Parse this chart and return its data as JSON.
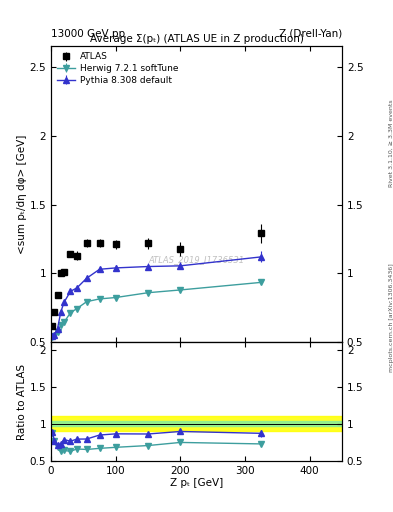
{
  "title_top_left": "13000 GeV pp",
  "title_top_right": "Z (Drell-Yan)",
  "title_main": "Average Σ(pₜ) (ATLAS UE in Z production)",
  "ylabel_main": "<sum pₜ/dη dφ> [GeV]",
  "ylabel_ratio": "Ratio to ATLAS",
  "xlabel": "Z pₜ [GeV]",
  "watermark": "ATLAS_2019_I1736531",
  "right_label": "mcplots.cern.ch [arXiv:1306.3436]",
  "right_label2": "Rivet 3.1.10, ≥ 3.3M events",
  "atlas_x": [
    2,
    5,
    10,
    15,
    20,
    30,
    40,
    55,
    75,
    100,
    150,
    200,
    325
  ],
  "atlas_y": [
    0.62,
    0.72,
    0.84,
    1.0,
    1.01,
    1.14,
    1.13,
    1.22,
    1.22,
    1.21,
    1.22,
    1.18,
    1.29
  ],
  "atlas_yerr": [
    0.02,
    0.02,
    0.02,
    0.02,
    0.02,
    0.02,
    0.03,
    0.03,
    0.03,
    0.03,
    0.04,
    0.05,
    0.07
  ],
  "herwig_x": [
    2,
    5,
    10,
    15,
    20,
    30,
    40,
    55,
    75,
    100,
    150,
    200,
    325
  ],
  "herwig_y": [
    0.54,
    0.545,
    0.575,
    0.625,
    0.645,
    0.715,
    0.745,
    0.795,
    0.815,
    0.825,
    0.86,
    0.88,
    0.935
  ],
  "herwig_yerr": [
    0.005,
    0.005,
    0.005,
    0.005,
    0.005,
    0.007,
    0.007,
    0.007,
    0.007,
    0.008,
    0.01,
    0.012,
    0.015
  ],
  "herwig_color": "#3d9e9e",
  "pythia_x": [
    2,
    5,
    10,
    15,
    20,
    30,
    40,
    55,
    75,
    100,
    150,
    200,
    325
  ],
  "pythia_y": [
    0.545,
    0.55,
    0.6,
    0.72,
    0.79,
    0.87,
    0.895,
    0.965,
    1.03,
    1.04,
    1.05,
    1.055,
    1.12
  ],
  "pythia_yerr": [
    0.007,
    0.007,
    0.008,
    0.01,
    0.01,
    0.012,
    0.013,
    0.015,
    0.018,
    0.02,
    0.022,
    0.025,
    0.04
  ],
  "pythia_color": "#3333cc",
  "herwig_ratio_y": [
    0.875,
    0.77,
    0.69,
    0.63,
    0.64,
    0.628,
    0.66,
    0.653,
    0.668,
    0.682,
    0.706,
    0.748,
    0.728
  ],
  "herwig_ratio_yerr": [
    0.01,
    0.01,
    0.01,
    0.01,
    0.01,
    0.01,
    0.01,
    0.01,
    0.01,
    0.012,
    0.014,
    0.016,
    0.018
  ],
  "pythia_ratio_y": [
    0.886,
    0.77,
    0.716,
    0.724,
    0.786,
    0.765,
    0.793,
    0.794,
    0.848,
    0.864,
    0.862,
    0.896,
    0.871
  ],
  "pythia_ratio_yerr": [
    0.012,
    0.012,
    0.013,
    0.014,
    0.015,
    0.016,
    0.016,
    0.018,
    0.022,
    0.025,
    0.027,
    0.032,
    0.048
  ],
  "band_yellow_lo": 0.9,
  "band_yellow_hi": 1.1,
  "band_green_lo": 0.965,
  "band_green_hi": 1.035,
  "xlim": [
    0,
    450
  ],
  "ylim_main": [
    0.5,
    2.65
  ],
  "ylim_ratio": [
    0.5,
    2.1
  ],
  "yticks_main": [
    0.5,
    1.0,
    1.5,
    2.0,
    2.5
  ],
  "yticks_ratio": [
    0.5,
    1.0,
    1.5,
    2.0
  ],
  "xticks": [
    0,
    100,
    200,
    300,
    400
  ]
}
